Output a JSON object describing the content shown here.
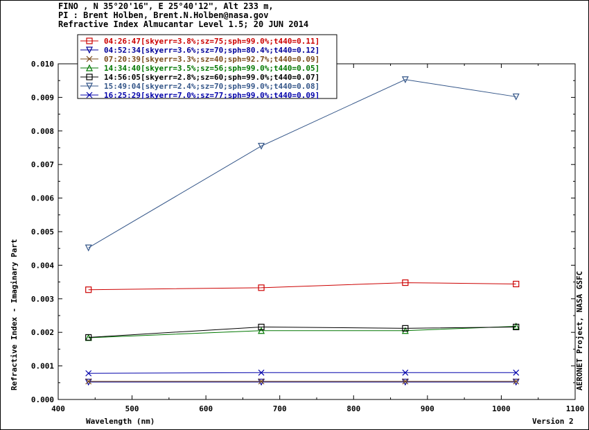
{
  "header": {
    "line1": "FINO , N 35°20'16\", E 25°40'12\", Alt 233 m,",
    "line2": "PI : Brent Holben, Brent.N.Holben@nasa.gov",
    "line3": "Refractive Index Almucantar Level 1.5; 20 JUN 2014"
  },
  "side_note": "AERONET Project, NASA GSFC",
  "version": "Version 2",
  "chart_data": {
    "type": "line",
    "xlabel": "Wavelength (nm)",
    "ylabel": "Refractive Index - Imaginary Part",
    "xlim": [
      400,
      1100
    ],
    "ylim": [
      0.0,
      0.01
    ],
    "xticks": [
      "400",
      "500",
      "600",
      "700",
      "800",
      "900",
      "1000",
      "1100"
    ],
    "yticks": [
      "0.000",
      "0.001",
      "0.002",
      "0.003",
      "0.004",
      "0.005",
      "0.006",
      "0.007",
      "0.008",
      "0.009",
      "0.010"
    ],
    "x": [
      441,
      675,
      870,
      1020
    ],
    "legend_position": "top-left",
    "grid": false,
    "series": [
      {
        "name": "04:26:47[skyerr=3.8%;sz=75;sph=99.0%;t440=0.11]",
        "color": "#cc0000",
        "marker": "square",
        "values": [
          0.00327,
          0.00333,
          0.00348,
          0.00344
        ]
      },
      {
        "name": "04:52:34[skyerr=3.6%;sz=70;sph=80.4%;t440=0.12]",
        "color": "#000099",
        "marker": "triangle-down",
        "values": [
          0.00052,
          0.00052,
          0.00052,
          0.00052
        ]
      },
      {
        "name": "07:20:39[skyerr=3.3%;sz=40;sph=92.7%;t440=0.09]",
        "color": "#7a4a1a",
        "marker": "x",
        "values": [
          0.00054,
          0.00054,
          0.00054,
          0.00054
        ]
      },
      {
        "name": "14:34:40[skyerr=3.5%;sz=56;sph=99.0%;t440=0.05]",
        "color": "#007700",
        "marker": "triangle-up",
        "values": [
          0.00184,
          0.00205,
          0.00205,
          0.00218
        ]
      },
      {
        "name": "14:56:05[skyerr=2.8%;sz=60;sph=99.0%;t440=0.07]",
        "color": "#000000",
        "marker": "square",
        "values": [
          0.00185,
          0.00216,
          0.00212,
          0.00216
        ]
      },
      {
        "name": "15:49:04[skyerr=2.4%;sz=70;sph=99.0%;t440=0.08]",
        "color": "#335588",
        "marker": "triangle-down",
        "values": [
          0.00452,
          0.00755,
          0.00953,
          0.00902
        ]
      },
      {
        "name": "16:25:29[skyerr=7.0%;sz=77;sph=99.0%;t440=0.09]",
        "color": "#0000aa",
        "marker": "x",
        "values": [
          0.00078,
          0.0008,
          0.0008,
          0.0008
        ]
      }
    ]
  }
}
